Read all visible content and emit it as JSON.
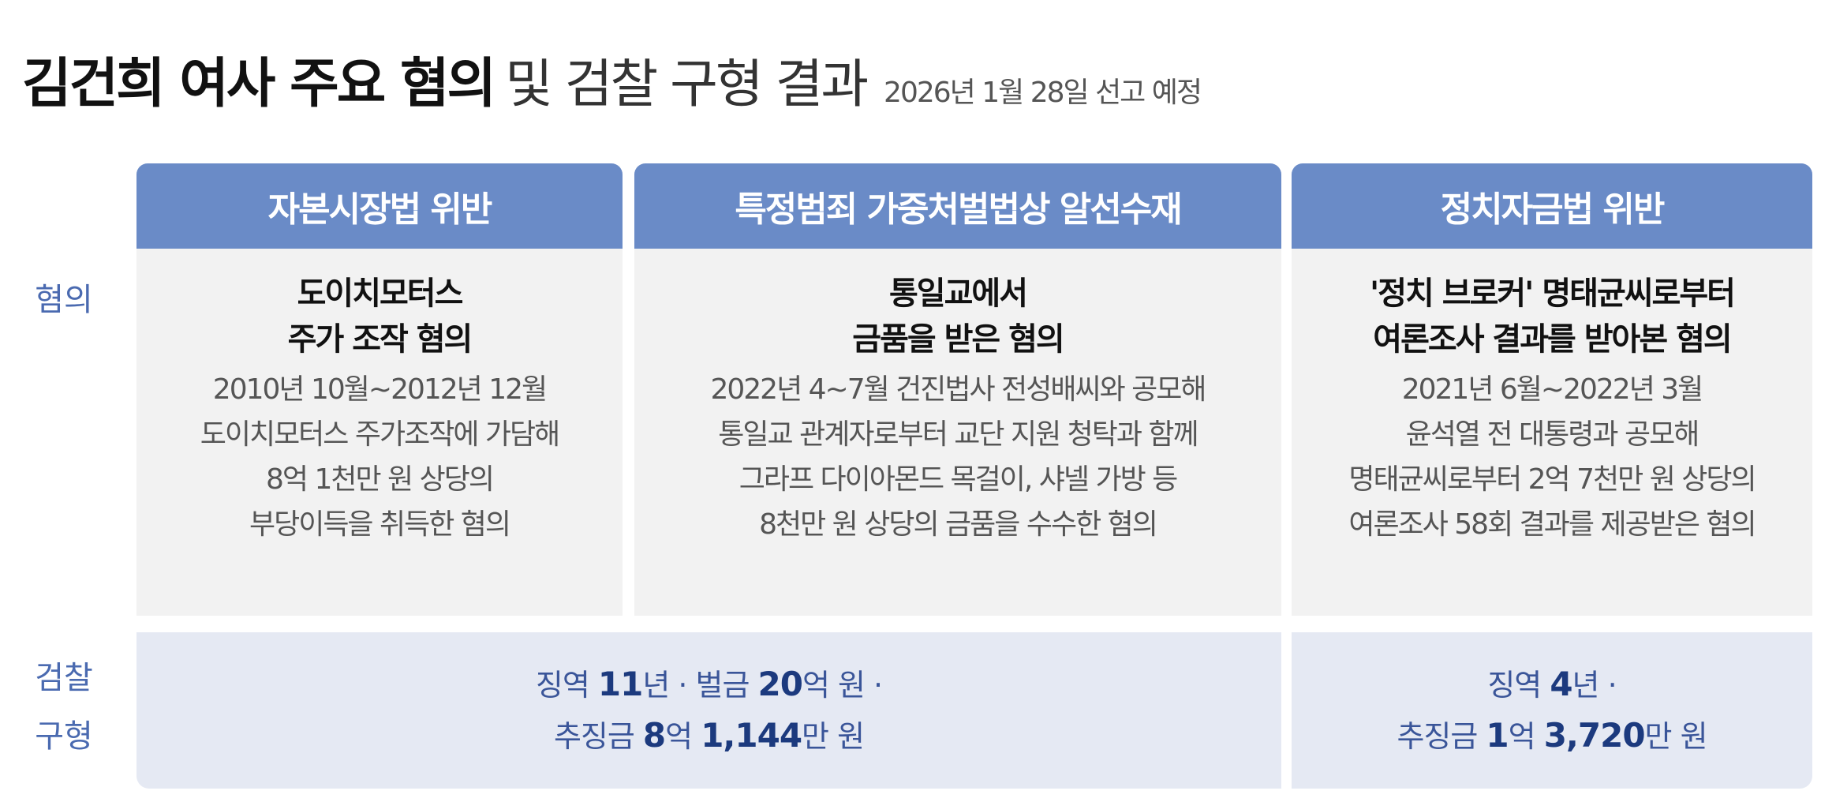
{
  "title": {
    "bold": "김건희 여사 주요 혐의",
    "light": "및 검찰 구형 결과",
    "sub": "2026년 1월 28일 선고 예정"
  },
  "row_labels": {
    "charge": "혐의",
    "sentence_line1": "검찰",
    "sentence_line2": "구형"
  },
  "columns": [
    {
      "header": "자본시장법 위반",
      "lead": [
        "도이치모터스",
        "주가 조작 혐의"
      ],
      "desc": [
        "2010년 10월~2012년 12월",
        "도이치모터스 주가조작에 가담해",
        "8억 1천만 원 상당의",
        "부당이득을 취득한 혐의"
      ]
    },
    {
      "header": "특정범죄 가중처벌법상 알선수재",
      "lead": [
        "통일교에서",
        "금품을 받은 혐의"
      ],
      "desc": [
        "2022년 4~7월 건진법사 전성배씨와 공모해",
        "통일교 관계자로부터 교단 지원 청탁과 함께",
        "그라프 다이아몬드 목걸이, 샤넬 가방 등",
        "8천만 원 상당의 금품을 수수한 혐의"
      ]
    },
    {
      "header": "정치자금법 위반",
      "lead": [
        "'정치 브로커' 명태균씨로부터",
        "여론조사 결과를 받아본 혐의"
      ],
      "desc": [
        "2021년 6월~2022년 3월",
        "윤석열 전 대통령과 공모해",
        "명태균씨로부터 2억 7천만 원 상당의",
        "여론조사 58회 결과를 제공받은 혐의"
      ]
    }
  ],
  "sentences": [
    {
      "l1": [
        "징역 ",
        "11",
        "년 · 벌금 ",
        "20",
        "억 원 ·"
      ],
      "l2": [
        "추징금 ",
        "8",
        "억 ",
        "1,144",
        "만 원"
      ]
    },
    {
      "l1": [
        "징역 ",
        "4",
        "년 ·"
      ],
      "l2": [
        "추징금 ",
        "1",
        "억 ",
        "3,720",
        "만 원"
      ]
    }
  ],
  "colors": {
    "header": "#6a8bc7",
    "cell": "#f2f2f2",
    "sentence_bg": "#e5e9f3",
    "accent_text": "#1c3a7e"
  }
}
